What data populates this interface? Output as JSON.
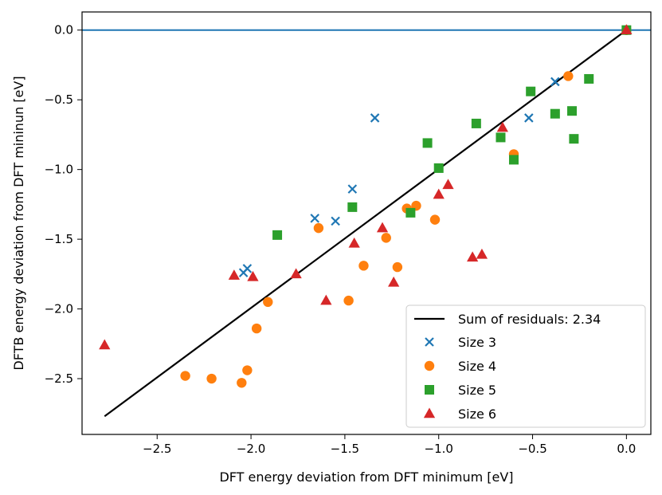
{
  "chart_data": {
    "type": "scatter",
    "title": "",
    "xlabel": "DFT energy deviation from DFT minimum [eV]",
    "ylabel": "DFTB energy deviation from DFT mininun [eV]",
    "xlim": [
      -2.9,
      0.13
    ],
    "ylim": [
      -2.9,
      0.13
    ],
    "xticks": [
      -2.5,
      -2.0,
      -1.5,
      -1.0,
      -0.5,
      0.0
    ],
    "xtick_labels": [
      "−2.5",
      "−2.0",
      "−1.5",
      "−1.0",
      "−0.5",
      "0.0"
    ],
    "yticks": [
      0.0,
      -0.5,
      -1.0,
      -1.5,
      -2.0,
      -2.5
    ],
    "ytick_labels": [
      "0.0",
      "−0.5",
      "−1.0",
      "−1.5",
      "−2.0",
      "−2.5"
    ],
    "grid": false,
    "legend_position": "lower-right",
    "reference_hline": {
      "y": 0.0,
      "color": "#1f77b4"
    },
    "fit_line": {
      "label": "Sum of residuals: 2.34",
      "color": "#000000",
      "x": [
        -2.78,
        0.0
      ],
      "y": [
        -2.77,
        0.0
      ]
    },
    "series": [
      {
        "name": "Size 3",
        "marker": "x",
        "color": "#1f77b4",
        "points": [
          [
            -2.04,
            -1.74
          ],
          [
            -2.02,
            -1.71
          ],
          [
            -1.66,
            -1.35
          ],
          [
            -1.55,
            -1.37
          ],
          [
            -1.46,
            -1.14
          ],
          [
            -1.34,
            -0.63
          ],
          [
            -0.52,
            -0.63
          ],
          [
            -0.38,
            -0.37
          ],
          [
            0.0,
            0.0
          ]
        ]
      },
      {
        "name": "Size 4",
        "marker": "circle",
        "color": "#ff7f0e",
        "points": [
          [
            -2.35,
            -2.48
          ],
          [
            -2.21,
            -2.5
          ],
          [
            -2.05,
            -2.53
          ],
          [
            -2.02,
            -2.44
          ],
          [
            -1.97,
            -2.14
          ],
          [
            -1.91,
            -1.95
          ],
          [
            -1.64,
            -1.42
          ],
          [
            -1.48,
            -1.94
          ],
          [
            -1.4,
            -1.69
          ],
          [
            -1.28,
            -1.49
          ],
          [
            -1.22,
            -1.7
          ],
          [
            -1.17,
            -1.28
          ],
          [
            -1.12,
            -1.26
          ],
          [
            -1.02,
            -1.36
          ],
          [
            -0.6,
            -0.89
          ],
          [
            -0.31,
            -0.33
          ],
          [
            0.0,
            0.0
          ]
        ]
      },
      {
        "name": "Size 5",
        "marker": "square",
        "color": "#2ca02c",
        "points": [
          [
            -1.86,
            -1.47
          ],
          [
            -1.46,
            -1.27
          ],
          [
            -1.15,
            -1.31
          ],
          [
            -1.06,
            -0.81
          ],
          [
            -1.0,
            -0.99
          ],
          [
            -0.8,
            -0.67
          ],
          [
            -0.67,
            -0.77
          ],
          [
            -0.6,
            -0.93
          ],
          [
            -0.51,
            -0.44
          ],
          [
            -0.38,
            -0.6
          ],
          [
            -0.29,
            -0.58
          ],
          [
            -0.28,
            -0.78
          ],
          [
            -0.2,
            -0.35
          ],
          [
            0.0,
            0.0
          ]
        ]
      },
      {
        "name": "Size 6",
        "marker": "triangle",
        "color": "#d62728",
        "points": [
          [
            -2.78,
            -2.26
          ],
          [
            -2.09,
            -1.76
          ],
          [
            -1.99,
            -1.77
          ],
          [
            -1.76,
            -1.75
          ],
          [
            -1.6,
            -1.94
          ],
          [
            -1.45,
            -1.53
          ],
          [
            -1.3,
            -1.42
          ],
          [
            -1.24,
            -1.81
          ],
          [
            -1.0,
            -1.18
          ],
          [
            -0.95,
            -1.11
          ],
          [
            -0.82,
            -1.63
          ],
          [
            -0.77,
            -1.61
          ],
          [
            -0.66,
            -0.7
          ],
          [
            0.0,
            0.0
          ]
        ]
      }
    ]
  }
}
